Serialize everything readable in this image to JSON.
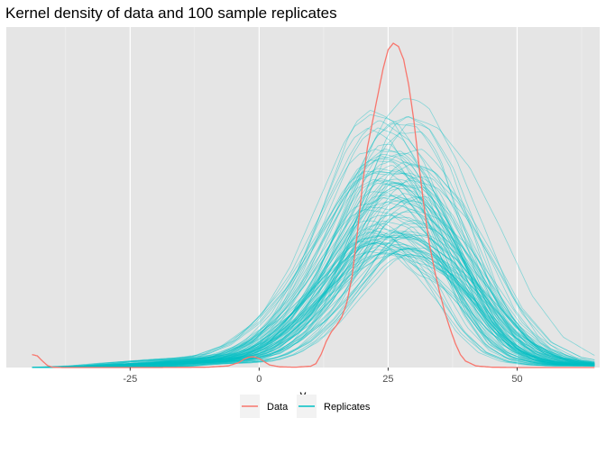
{
  "chart_data": {
    "type": "line",
    "title": "Kernel density of data and 100 sample replicates",
    "xlabel": "y",
    "ylabel": "",
    "xlim": [
      -49,
      66
    ],
    "ylim": [
      0,
      1.05
    ],
    "x_ticks": [
      -25,
      0,
      25,
      50
    ],
    "x_tick_labels": [
      "-25",
      "0",
      "25",
      "50"
    ],
    "y_axis_shown": false,
    "grid": true,
    "background": "#E5E5E5",
    "legend": {
      "position": "bottom",
      "entries": [
        "Data",
        "Replicates"
      ]
    },
    "colors": {
      "Data": "#F8766D",
      "Replicates": "#00BFC4"
    },
    "replicate_count": 100,
    "series": [
      {
        "name": "Data",
        "x": [
          -44,
          -43,
          -42,
          -41,
          -40,
          -38,
          -35,
          -30,
          -20,
          -10,
          -6,
          -4,
          -3,
          -2,
          -1,
          0,
          1,
          2,
          4,
          7,
          10,
          11,
          12,
          13,
          14,
          15,
          16,
          17,
          18,
          19,
          20,
          21,
          22,
          23,
          24,
          25,
          26,
          27,
          28,
          29,
          30,
          31,
          32,
          33,
          34,
          35,
          36,
          37,
          38,
          39,
          40,
          42,
          45,
          50,
          55,
          60,
          65
        ],
        "y": [
          0.04,
          0.036,
          0.02,
          0.006,
          0.001,
          0.0,
          0.0,
          0.0,
          0.0,
          0.001,
          0.005,
          0.015,
          0.025,
          0.032,
          0.033,
          0.028,
          0.018,
          0.008,
          0.002,
          0.001,
          0.004,
          0.012,
          0.04,
          0.08,
          0.11,
          0.13,
          0.155,
          0.2,
          0.28,
          0.41,
          0.56,
          0.68,
          0.76,
          0.84,
          0.92,
          0.98,
          1.0,
          0.99,
          0.95,
          0.87,
          0.76,
          0.62,
          0.49,
          0.38,
          0.3,
          0.23,
          0.17,
          0.12,
          0.075,
          0.04,
          0.02,
          0.005,
          0.001,
          0.0,
          0.0,
          0.0,
          0.0
        ]
      }
    ],
    "replicates_summary": {
      "name": "Replicates",
      "x": [
        -44,
        -40,
        -35,
        -30,
        -25,
        -20,
        -15,
        -10,
        -5,
        0,
        5,
        10,
        15,
        20,
        22,
        25,
        28,
        30,
        35,
        40,
        45,
        50,
        55,
        60,
        65
      ],
      "y_mean": [
        0.0,
        0.0,
        0.0,
        0.001,
        0.004,
        0.01,
        0.015,
        0.018,
        0.025,
        0.05,
        0.1,
        0.18,
        0.29,
        0.4,
        0.43,
        0.45,
        0.44,
        0.43,
        0.36,
        0.25,
        0.13,
        0.055,
        0.022,
        0.01,
        0.006
      ],
      "peak_range": [
        0.35,
        0.8
      ]
    }
  }
}
